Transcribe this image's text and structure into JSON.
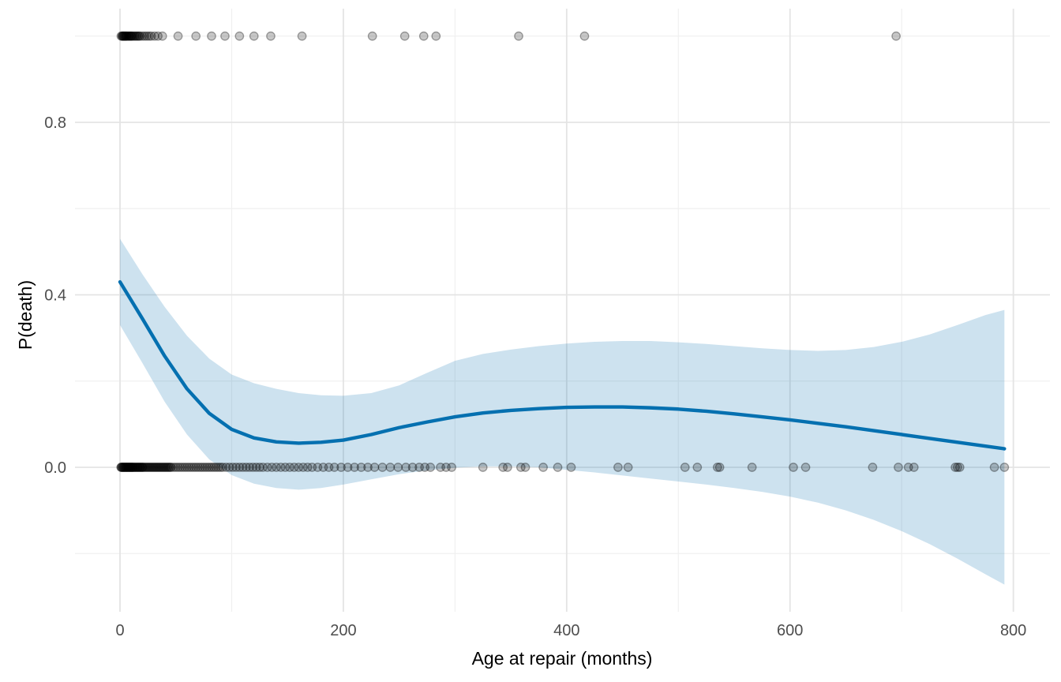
{
  "chart_data": {
    "type": "scatter",
    "subtype": "binary-outcome-with-loess-smooth",
    "title": "",
    "xlabel": "Age at repair (months)",
    "ylabel": "P(death)",
    "x_tick_values": [
      0,
      200,
      400,
      600,
      800
    ],
    "x_tick_labels": [
      "0",
      "200",
      "400",
      "600",
      "800"
    ],
    "x_minor_values": [
      100,
      300,
      500,
      700
    ],
    "y_tick_values": [
      0.0,
      0.4,
      0.8
    ],
    "y_tick_labels": [
      "0.0",
      "0.4",
      "0.8"
    ],
    "y_minor_values": [
      -0.2,
      0.2,
      0.6,
      1.0
    ],
    "xlim": [
      -40,
      832
    ],
    "ylim": [
      -0.33,
      1.07
    ],
    "grid": "major-and-minor",
    "legend": "none",
    "points_y1_x": [
      1,
      2,
      2,
      3,
      3,
      4,
      4,
      5,
      5,
      6,
      6,
      7,
      8,
      8,
      9,
      10,
      10,
      11,
      12,
      13,
      14,
      15,
      16,
      17,
      18,
      20,
      22,
      24,
      26,
      28,
      31,
      34,
      38,
      52,
      68,
      82,
      94,
      107,
      120,
      135,
      163,
      226,
      255,
      272,
      283,
      357,
      416,
      695
    ],
    "points_y0_x": [
      1,
      1,
      2,
      2,
      3,
      3,
      4,
      4,
      5,
      5,
      6,
      6,
      7,
      7,
      8,
      8,
      9,
      9,
      10,
      10,
      11,
      11,
      12,
      12,
      13,
      14,
      14,
      15,
      16,
      16,
      17,
      18,
      18,
      19,
      20,
      20,
      21,
      22,
      23,
      24,
      25,
      26,
      27,
      28,
      29,
      30,
      31,
      32,
      33,
      34,
      35,
      36,
      37,
      38,
      39,
      40,
      41,
      42,
      43,
      44,
      45,
      46,
      48,
      50,
      52,
      54,
      56,
      58,
      60,
      62,
      64,
      66,
      68,
      70,
      72,
      74,
      76,
      78,
      80,
      82,
      84,
      86,
      88,
      90,
      92,
      95,
      98,
      101,
      104,
      107,
      110,
      113,
      116,
      119,
      122,
      125,
      128,
      132,
      136,
      140,
      144,
      148,
      152,
      156,
      160,
      164,
      168,
      172,
      177,
      182,
      187,
      192,
      198,
      204,
      210,
      216,
      222,
      228,
      235,
      242,
      249,
      256,
      262,
      268,
      273,
      278,
      287,
      292,
      297,
      325,
      343,
      347,
      359,
      363,
      379,
      392,
      404,
      446,
      455,
      506,
      517,
      535,
      537,
      566,
      603,
      614,
      674,
      697,
      706,
      711,
      748,
      750,
      752,
      783,
      792
    ],
    "smooth": {
      "x": [
        0,
        20,
        40,
        60,
        80,
        100,
        120,
        140,
        160,
        180,
        200,
        225,
        250,
        275,
        300,
        325,
        350,
        375,
        400,
        425,
        450,
        475,
        500,
        525,
        550,
        575,
        600,
        625,
        650,
        675,
        700,
        725,
        750,
        775,
        792
      ],
      "y": [
        0.43,
        0.345,
        0.258,
        0.182,
        0.125,
        0.088,
        0.068,
        0.059,
        0.056,
        0.058,
        0.063,
        0.076,
        0.092,
        0.105,
        0.117,
        0.126,
        0.132,
        0.136,
        0.139,
        0.14,
        0.14,
        0.138,
        0.135,
        0.13,
        0.124,
        0.117,
        0.11,
        0.102,
        0.094,
        0.085,
        0.076,
        0.067,
        0.058,
        0.049,
        0.043
      ]
    },
    "band": {
      "x": [
        0,
        20,
        40,
        60,
        80,
        100,
        120,
        140,
        160,
        180,
        200,
        225,
        250,
        275,
        300,
        325,
        350,
        375,
        400,
        425,
        450,
        475,
        500,
        525,
        550,
        575,
        600,
        625,
        650,
        675,
        700,
        725,
        750,
        775,
        792
      ],
      "upper": [
        0.53,
        0.448,
        0.372,
        0.305,
        0.252,
        0.215,
        0.195,
        0.182,
        0.172,
        0.167,
        0.166,
        0.172,
        0.19,
        0.219,
        0.247,
        0.263,
        0.273,
        0.281,
        0.287,
        0.291,
        0.293,
        0.293,
        0.29,
        0.286,
        0.281,
        0.276,
        0.272,
        0.27,
        0.272,
        0.279,
        0.291,
        0.308,
        0.33,
        0.353,
        0.365
      ],
      "lower": [
        0.33,
        0.242,
        0.152,
        0.076,
        0.018,
        -0.018,
        -0.038,
        -0.048,
        -0.052,
        -0.048,
        -0.04,
        -0.028,
        -0.016,
        -0.007,
        -0.001,
        0.002,
        0.002,
        0.0,
        -0.006,
        -0.012,
        -0.019,
        -0.026,
        -0.033,
        -0.04,
        -0.048,
        -0.057,
        -0.068,
        -0.082,
        -0.1,
        -0.122,
        -0.148,
        -0.178,
        -0.212,
        -0.248,
        -0.272
      ]
    },
    "colors": {
      "line": "#0570b0",
      "band_fill": "#0570b0",
      "band_opacity": 0.2,
      "point": "#000000",
      "point_fill_opacity": 0.22,
      "point_stroke_opacity": 0.35,
      "grid_major": "#e4e4e4",
      "grid_minor": "#f0f0f0",
      "tick_text": "#4d4d4d",
      "axis_title_text": "#000000",
      "background": "#ffffff"
    }
  }
}
